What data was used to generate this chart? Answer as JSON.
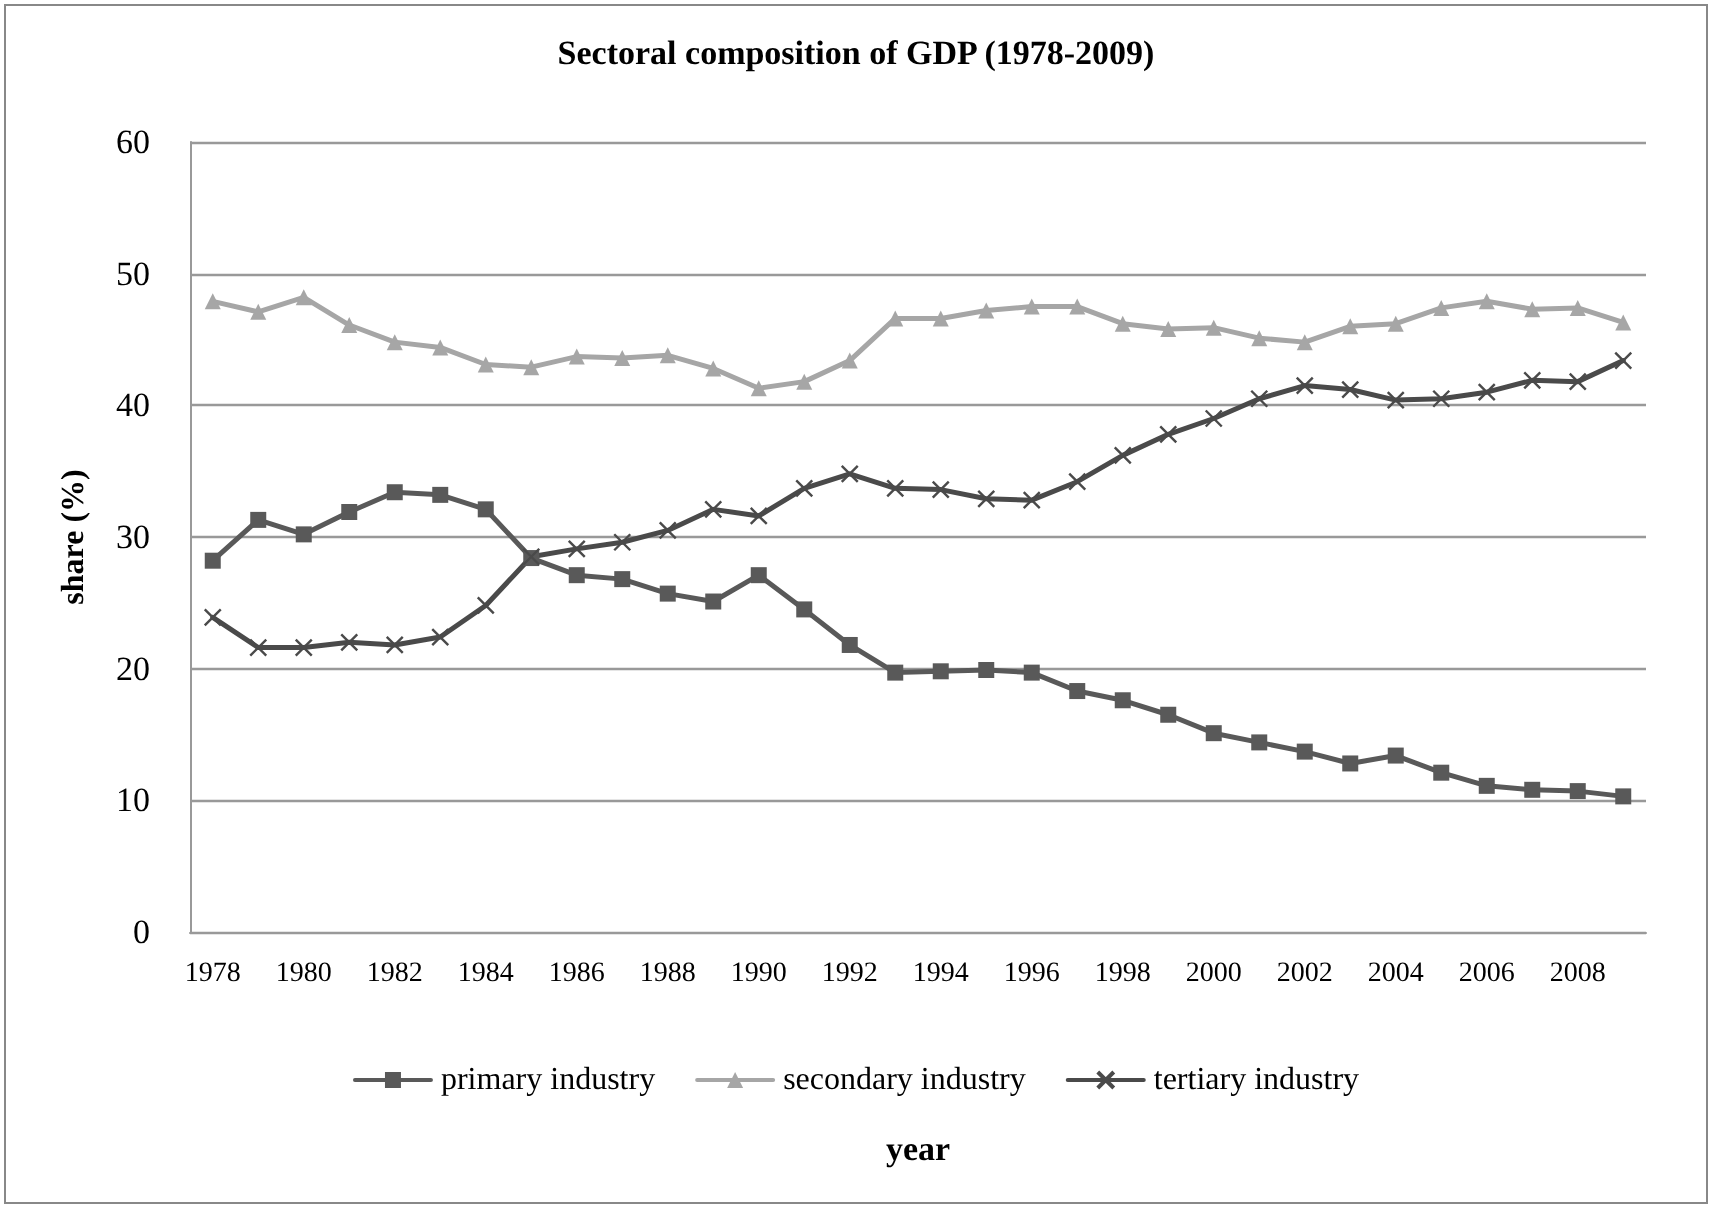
{
  "chart_data": {
    "type": "line",
    "title": "Sectoral composition of GDP (1978-2009)",
    "xlabel": "year",
    "ylabel": "share (%)",
    "categories": [
      "1978",
      null,
      "1980",
      null,
      "1982",
      null,
      "1984",
      null,
      "1986",
      null,
      "1988",
      null,
      "1990",
      null,
      "1992",
      null,
      "1994",
      null,
      "1996",
      null,
      "1998",
      null,
      "2000",
      null,
      "2002",
      null,
      "2004",
      null,
      "2006",
      null,
      "2008",
      null
    ],
    "series": [
      {
        "name": "primary industry",
        "color": "#595959",
        "marker": "square",
        "values": [
          28.2,
          31.3,
          30.2,
          31.9,
          33.4,
          33.2,
          32.1,
          28.4,
          27.1,
          26.8,
          25.7,
          25.1,
          27.1,
          24.5,
          21.8,
          19.7,
          19.8,
          19.9,
          19.7,
          18.3,
          17.6,
          16.5,
          15.1,
          14.4,
          13.7,
          12.8,
          13.4,
          12.1,
          11.1,
          10.8,
          10.7,
          10.3
        ]
      },
      {
        "name": "secondary industry",
        "color": "#a6a6a6",
        "marker": "triangle",
        "values": [
          47.9,
          47.1,
          48.2,
          46.1,
          44.8,
          44.4,
          43.1,
          42.9,
          43.7,
          43.6,
          43.8,
          42.8,
          41.3,
          41.8,
          43.4,
          46.6,
          46.6,
          47.2,
          47.5,
          47.5,
          46.2,
          45.8,
          45.9,
          45.1,
          44.8,
          46.0,
          46.2,
          47.4,
          47.9,
          47.3,
          47.4,
          46.3
        ]
      },
      {
        "name": "tertiary industry",
        "color": "#4a4a4a",
        "marker": "cross",
        "values": [
          23.9,
          21.6,
          21.6,
          22.0,
          21.8,
          22.4,
          24.8,
          28.5,
          29.1,
          29.6,
          30.5,
          32.1,
          31.6,
          33.7,
          34.8,
          33.7,
          33.6,
          32.9,
          32.8,
          34.2,
          36.2,
          37.8,
          39.0,
          40.5,
          41.5,
          41.2,
          40.4,
          40.5,
          41.0,
          41.9,
          41.8,
          43.4
        ]
      }
    ],
    "ylim": [
      0,
      60
    ],
    "yticks": [
      0,
      10,
      20,
      30,
      40,
      50,
      60
    ],
    "grid": "y",
    "legend": "bottom",
    "line_style": "solid"
  }
}
